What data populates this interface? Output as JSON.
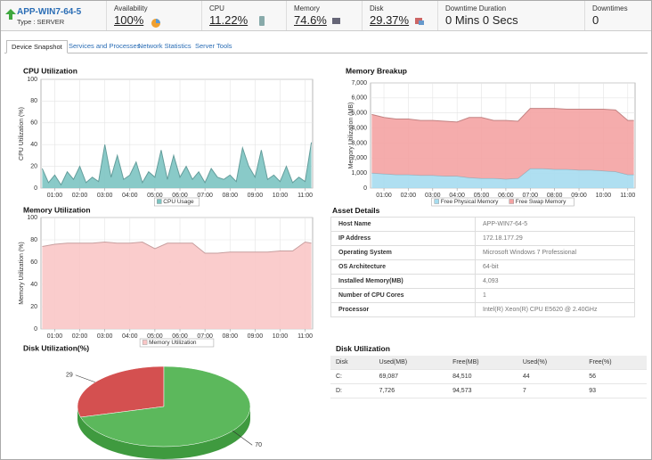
{
  "header": {
    "device": "APP-WIN7-64-5",
    "type": "Type : SERVER",
    "metrics": [
      {
        "label": "Availability",
        "value": "100%"
      },
      {
        "label": "CPU",
        "value": "11.22%"
      },
      {
        "label": "Memory",
        "value": "74.6%"
      },
      {
        "label": "Disk",
        "value": "29.37%"
      },
      {
        "label": "Downtime Duration",
        "value": "0 Mins 0 Secs"
      },
      {
        "label": "Downtimes",
        "value": "0"
      }
    ]
  },
  "tabs": [
    "Device Snapshot",
    "Services and Processes",
    "Network Statistics",
    "Server Tools"
  ],
  "chart_data": [
    {
      "type": "area",
      "title": "CPU Utilization",
      "y_label": "CPU Utilization (%)",
      "x": [
        0.5,
        0.75,
        1,
        1.25,
        1.5,
        1.75,
        2,
        2.25,
        2.5,
        2.75,
        3,
        3.25,
        3.5,
        3.75,
        4,
        4.25,
        4.5,
        4.75,
        5,
        5.25,
        5.5,
        5.75,
        6,
        6.25,
        6.5,
        6.75,
        7,
        7.25,
        7.5,
        7.75,
        8,
        8.25,
        8.5,
        8.75,
        9,
        9.25,
        9.5,
        9.75,
        10,
        10.25,
        10.5,
        10.75,
        11,
        11.25
      ],
      "series": [
        {
          "name": "CPU Usage",
          "color": "#7cc4c2",
          "values": [
            18,
            5,
            12,
            3,
            15,
            8,
            20,
            5,
            10,
            6,
            40,
            10,
            30,
            8,
            12,
            24,
            5,
            15,
            10,
            35,
            8,
            30,
            10,
            20,
            8,
            15,
            5,
            18,
            10,
            8,
            12,
            6,
            37,
            20,
            10,
            35,
            8,
            12,
            6,
            20,
            5,
            10,
            6,
            42
          ]
        }
      ],
      "xlim": [
        0.45,
        11.3
      ],
      "xticks": [
        {
          "value": 1,
          "label": "01:00"
        },
        {
          "value": 2,
          "label": "02:00"
        },
        {
          "value": 3,
          "label": "03:00"
        },
        {
          "value": 4,
          "label": "04:00"
        },
        {
          "value": 5,
          "label": "05:00"
        },
        {
          "value": 6,
          "label": "06:00"
        },
        {
          "value": 7,
          "label": "07:00"
        },
        {
          "value": 8,
          "label": "08:00"
        },
        {
          "value": 9,
          "label": "09:00"
        },
        {
          "value": 10,
          "label": "10:00"
        },
        {
          "value": 11,
          "label": "11:00"
        }
      ],
      "ylim": [
        0,
        100
      ],
      "yticks": [
        0,
        20,
        40,
        60,
        80,
        100
      ],
      "grid": true
    },
    {
      "type": "stacked_area",
      "title": "Memory Breakup",
      "y_label": "Memory Utilization (MB)",
      "x": [
        0.5,
        1,
        1.5,
        2,
        2.5,
        3,
        3.5,
        4,
        4.5,
        5,
        5.5,
        6,
        6.5,
        7,
        7.5,
        8,
        8.5,
        9,
        9.5,
        10,
        10.5,
        11,
        11.25
      ],
      "series": [
        {
          "name": "Free Physical Memory",
          "color": "#a6dcef",
          "values": [
            1000,
            950,
            900,
            900,
            850,
            850,
            800,
            800,
            700,
            650,
            650,
            600,
            650,
            1300,
            1300,
            1250,
            1250,
            1200,
            1200,
            1150,
            1100,
            900,
            900
          ]
        },
        {
          "name": "Free Swap Memory",
          "color": "#f4a3a3",
          "values": [
            3900,
            3750,
            3700,
            3700,
            3650,
            3650,
            3650,
            3600,
            4000,
            4050,
            3850,
            3900,
            3800,
            4000,
            4000,
            4050,
            4000,
            4050,
            4050,
            4100,
            4100,
            3600,
            3600
          ]
        }
      ],
      "xlim": [
        0.45,
        11.3
      ],
      "xticks": [
        {
          "value": 1,
          "label": "01:00"
        },
        {
          "value": 2,
          "label": "02:00"
        },
        {
          "value": 3,
          "label": "03:00"
        },
        {
          "value": 4,
          "label": "04:00"
        },
        {
          "value": 5,
          "label": "05:00"
        },
        {
          "value": 6,
          "label": "06:00"
        },
        {
          "value": 7,
          "label": "07:00"
        },
        {
          "value": 8,
          "label": "08:00"
        },
        {
          "value": 9,
          "label": "09:00"
        },
        {
          "value": 10,
          "label": "10:00"
        },
        {
          "value": 11,
          "label": "11:00"
        }
      ],
      "ylim": [
        0,
        7000
      ],
      "yticks": [
        0,
        {
          "value": 1000,
          "label": "1,000"
        },
        {
          "value": 2000,
          "label": "2,000"
        },
        {
          "value": 3000,
          "label": "3,000"
        },
        {
          "value": 4000,
          "label": "4,000"
        },
        {
          "value": 5000,
          "label": "5,000"
        },
        {
          "value": 6000,
          "label": "6,000"
        },
        {
          "value": 7000,
          "label": "7,000"
        }
      ],
      "grid": true
    },
    {
      "type": "area",
      "title": "Memory Utilization",
      "y_label": "Memory Utilization (%)",
      "x": [
        0.5,
        1,
        1.5,
        2,
        2.5,
        3,
        3.5,
        4,
        4.5,
        5,
        5.5,
        6,
        6.5,
        7,
        7.5,
        8,
        8.5,
        9,
        9.5,
        10,
        10.5,
        11,
        11.25
      ],
      "series": [
        {
          "name": "Memory Utilization",
          "color": "#f9c6c6",
          "values": [
            74,
            76,
            77,
            77,
            77,
            78,
            77,
            77,
            78,
            72,
            77,
            77,
            77,
            68,
            68,
            69,
            69,
            69,
            69,
            70,
            70,
            78,
            77
          ]
        }
      ],
      "xlim": [
        0.45,
        11.3
      ],
      "xticks": [
        {
          "value": 1,
          "label": "01:00"
        },
        {
          "value": 2,
          "label": "02:00"
        },
        {
          "value": 3,
          "label": "03:00"
        },
        {
          "value": 4,
          "label": "04:00"
        },
        {
          "value": 5,
          "label": "05:00"
        },
        {
          "value": 6,
          "label": "06:00"
        },
        {
          "value": 7,
          "label": "07:00"
        },
        {
          "value": 8,
          "label": "08:00"
        },
        {
          "value": 9,
          "label": "09:00"
        },
        {
          "value": 10,
          "label": "10:00"
        },
        {
          "value": 11,
          "label": "11:00"
        }
      ],
      "ylim": [
        0,
        100
      ],
      "yticks": [
        0,
        20,
        40,
        60,
        80,
        100
      ],
      "grid": true
    },
    {
      "type": "pie3d",
      "title": "Disk Utilization(%)",
      "values": [
        29,
        70
      ],
      "colors": [
        "#d45050",
        "#5cb85c"
      ]
    }
  ],
  "asset_details": {
    "title": "Asset Details",
    "rows": [
      [
        "Host Name",
        "APP-WIN7-64-5"
      ],
      [
        "IP Address",
        "172.18.177.29"
      ],
      [
        "Operating System",
        "Microsoft Windows 7 Professional"
      ],
      [
        "OS Architecture",
        "64-bit"
      ],
      [
        "Installed Memory(MB)",
        "4,093"
      ],
      [
        "Number of CPU Cores",
        "1"
      ],
      [
        "Processor",
        "Intel(R) Xeon(R) CPU E5620 @ 2.40GHz"
      ]
    ]
  },
  "disk_table": {
    "title": "Disk Utilization",
    "columns": [
      "Disk",
      "Used(MB)",
      "Free(MB)",
      "Used(%)",
      "Free(%)"
    ],
    "rows": [
      [
        "C:",
        "69,087",
        "84,510",
        "44",
        "56"
      ],
      [
        "D:",
        "7,726",
        "94,573",
        "7",
        "93"
      ]
    ]
  }
}
